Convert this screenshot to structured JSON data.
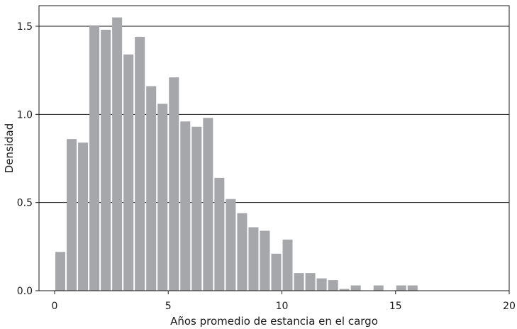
{
  "chart_data": {
    "type": "bar",
    "title": "",
    "xlabel": "Años promedio de estancia en el cargo",
    "ylabel": "Densidad",
    "xlim": [
      0,
      20
    ],
    "ylim": [
      0,
      1.6
    ],
    "x_ticks": [
      0,
      5,
      10,
      15,
      20
    ],
    "x_tick_labels": [
      "0",
      "5",
      "10",
      "15",
      "20"
    ],
    "y_ticks": [
      0,
      0.5,
      1,
      1.5
    ],
    "y_tick_labels": [
      "0.0",
      "0.5",
      "1.0",
      "1.5"
    ],
    "grid": "horizontal",
    "bin_width": 0.5,
    "bin_starts": [
      0,
      0.5,
      1,
      1.5,
      2,
      2.5,
      3,
      3.5,
      4,
      4.5,
      5,
      5.5,
      6,
      6.5,
      7,
      7.5,
      8,
      8.5,
      9,
      9.5,
      10,
      10.5,
      11,
      11.5,
      12,
      12.5,
      13,
      13.5,
      14,
      14.5,
      15,
      15.5,
      16,
      16.5,
      17
    ],
    "values": [
      0.22,
      0.86,
      0.84,
      1.5,
      1.48,
      1.55,
      1.34,
      1.44,
      1.16,
      1.06,
      1.21,
      0.96,
      0.93,
      0.98,
      0.64,
      0.52,
      0.44,
      0.36,
      0.34,
      0.21,
      0.29,
      0.1,
      0.1,
      0.07,
      0.06,
      0.01,
      0.03,
      0,
      0.03,
      0,
      0.03,
      0.03,
      0,
      0,
      0
    ],
    "bar_color": "#a6a7ab"
  }
}
